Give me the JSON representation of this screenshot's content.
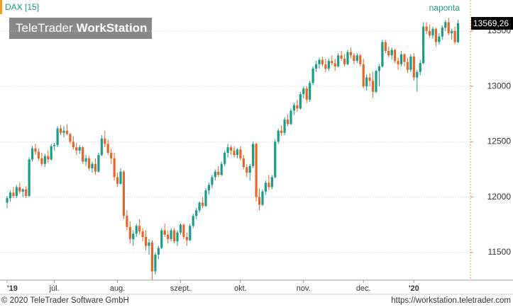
{
  "chart_data": {
    "type": "candlestick",
    "title": "DAX [15]",
    "interval": "naponta",
    "brand": {
      "light": "TeleTrader",
      "bold": "WorkStation"
    },
    "footer_left": "© 2020 TeleTrader Software GmbH",
    "footer_right": "https://workstation.teletrader.com",
    "up_color": "#1a9c86",
    "down_color": "#e5652a",
    "ylim": [
      11250,
      13780
    ],
    "yticks": [
      11500,
      12000,
      12500,
      13000,
      13500
    ],
    "xlim": [
      -2,
      146
    ],
    "xticks": [
      {
        "value": 0,
        "label": "'19"
      },
      {
        "value": 15,
        "label": "júl."
      },
      {
        "value": 35,
        "label": "aug."
      },
      {
        "value": 55,
        "label": "szept."
      },
      {
        "value": 74,
        "label": "okt."
      },
      {
        "value": 94,
        "label": "nov."
      },
      {
        "value": 113,
        "label": "dec."
      },
      {
        "value": 129,
        "label": "'20"
      }
    ],
    "grid": true,
    "last_value": {
      "value": 13569.26,
      "label": "13569,26"
    },
    "ohlc": [
      [
        11950,
        12010,
        11900,
        11990
      ],
      [
        11990,
        12060,
        11960,
        12040
      ],
      [
        12040,
        12090,
        11990,
        12010
      ],
      [
        12010,
        12110,
        11990,
        12090
      ],
      [
        12090,
        12130,
        12030,
        12050
      ],
      [
        12050,
        12080,
        12000,
        12070
      ],
      [
        12070,
        12100,
        11990,
        12010
      ],
      [
        12010,
        12360,
        12000,
        12340
      ],
      [
        12340,
        12460,
        12320,
        12440
      ],
      [
        12440,
        12480,
        12380,
        12410
      ],
      [
        12410,
        12440,
        12330,
        12350
      ],
      [
        12350,
        12400,
        12280,
        12300
      ],
      [
        12300,
        12390,
        12270,
        12370
      ],
      [
        12370,
        12420,
        12310,
        12340
      ],
      [
        12340,
        12480,
        12330,
        12460
      ],
      [
        12460,
        12490,
        12420,
        12470
      ],
      [
        12470,
        12640,
        12450,
        12620
      ],
      [
        12620,
        12650,
        12560,
        12580
      ],
      [
        12580,
        12640,
        12540,
        12600
      ],
      [
        12600,
        12660,
        12560,
        12570
      ],
      [
        12570,
        12580,
        12480,
        12500
      ],
      [
        12500,
        12550,
        12430,
        12450
      ],
      [
        12450,
        12490,
        12380,
        12420
      ],
      [
        12420,
        12470,
        12390,
        12450
      ],
      [
        12450,
        12460,
        12300,
        12320
      ],
      [
        12320,
        12380,
        12280,
        12350
      ],
      [
        12350,
        12370,
        12240,
        12260
      ],
      [
        12260,
        12320,
        12220,
        12300
      ],
      [
        12300,
        12350,
        12200,
        12230
      ],
      [
        12230,
        12400,
        12220,
        12380
      ],
      [
        12380,
        12560,
        12370,
        12530
      ],
      [
        12530,
        12600,
        12450,
        12480
      ],
      [
        12480,
        12520,
        12380,
        12400
      ],
      [
        12400,
        12440,
        12300,
        12350
      ],
      [
        12350,
        12400,
        12150,
        12180
      ],
      [
        12180,
        12220,
        12090,
        12120
      ],
      [
        12120,
        12260,
        12110,
        12230
      ],
      [
        12230,
        12240,
        11800,
        11830
      ],
      [
        11830,
        11880,
        11700,
        11730
      ],
      [
        11730,
        11780,
        11580,
        11620
      ],
      [
        11620,
        11700,
        11560,
        11670
      ],
      [
        11670,
        11760,
        11640,
        11740
      ],
      [
        11740,
        11800,
        11660,
        11690
      ],
      [
        11690,
        11720,
        11600,
        11640
      ],
      [
        11640,
        11700,
        11520,
        11560
      ],
      [
        11560,
        11620,
        11480,
        11590
      ],
      [
        11590,
        11610,
        11250,
        11330
      ],
      [
        11330,
        11500,
        11300,
        11480
      ],
      [
        11480,
        11560,
        11440,
        11540
      ],
      [
        11540,
        11720,
        11530,
        11700
      ],
      [
        11700,
        11760,
        11640,
        11660
      ],
      [
        11660,
        11700,
        11580,
        11620
      ],
      [
        11620,
        11720,
        11600,
        11700
      ],
      [
        11700,
        11720,
        11580,
        11600
      ],
      [
        11600,
        11700,
        11560,
        11680
      ],
      [
        11680,
        11760,
        11660,
        11750
      ],
      [
        11750,
        11760,
        11620,
        11640
      ],
      [
        11640,
        11680,
        11560,
        11610
      ],
      [
        11610,
        11760,
        11600,
        11740
      ],
      [
        11740,
        11850,
        11720,
        11830
      ],
      [
        11830,
        11900,
        11800,
        11880
      ],
      [
        11880,
        11960,
        11860,
        11950
      ],
      [
        11950,
        12000,
        11900,
        11920
      ],
      [
        11920,
        12080,
        11910,
        12060
      ],
      [
        12060,
        12130,
        12020,
        12110
      ],
      [
        12110,
        12200,
        12080,
        12180
      ],
      [
        12180,
        12250,
        12150,
        12230
      ],
      [
        12230,
        12280,
        12180,
        12200
      ],
      [
        12200,
        12320,
        12190,
        12300
      ],
      [
        12300,
        12420,
        12280,
        12400
      ],
      [
        12400,
        12480,
        12360,
        12450
      ],
      [
        12450,
        12470,
        12380,
        12420
      ],
      [
        12420,
        12460,
        12360,
        12380
      ],
      [
        12380,
        12440,
        12350,
        12430
      ],
      [
        12430,
        12460,
        12330,
        12350
      ],
      [
        12350,
        12380,
        12250,
        12270
      ],
      [
        12270,
        12300,
        12180,
        12220
      ],
      [
        12220,
        12300,
        12150,
        12280
      ],
      [
        12280,
        12500,
        12260,
        12480
      ],
      [
        12480,
        12490,
        11960,
        12000
      ],
      [
        12000,
        12080,
        11880,
        11930
      ],
      [
        11930,
        12070,
        11920,
        12050
      ],
      [
        12050,
        12150,
        12020,
        12130
      ],
      [
        12130,
        12200,
        12060,
        12090
      ],
      [
        12090,
        12200,
        12070,
        12180
      ],
      [
        12180,
        12520,
        12170,
        12500
      ],
      [
        12500,
        12620,
        12480,
        12600
      ],
      [
        12600,
        12650,
        12550,
        12580
      ],
      [
        12580,
        12720,
        12560,
        12700
      ],
      [
        12700,
        12750,
        12640,
        12660
      ],
      [
        12660,
        12800,
        12650,
        12780
      ],
      [
        12780,
        12850,
        12740,
        12830
      ],
      [
        12830,
        12880,
        12770,
        12800
      ],
      [
        12800,
        12950,
        12790,
        12930
      ],
      [
        12930,
        13000,
        12890,
        12980
      ],
      [
        12980,
        13000,
        12850,
        12880
      ],
      [
        12880,
        13050,
        12860,
        13030
      ],
      [
        13030,
        13180,
        13010,
        13160
      ],
      [
        13160,
        13230,
        13130,
        13200
      ],
      [
        13200,
        13260,
        13160,
        13240
      ],
      [
        13240,
        13270,
        13180,
        13200
      ],
      [
        13200,
        13250,
        13130,
        13160
      ],
      [
        13160,
        13250,
        13140,
        13230
      ],
      [
        13230,
        13280,
        13190,
        13210
      ],
      [
        13210,
        13250,
        13140,
        13180
      ],
      [
        13180,
        13300,
        13170,
        13280
      ],
      [
        13280,
        13320,
        13230,
        13250
      ],
      [
        13250,
        13290,
        13180,
        13200
      ],
      [
        13200,
        13330,
        13190,
        13310
      ],
      [
        13310,
        13350,
        13250,
        13280
      ],
      [
        13280,
        13300,
        13200,
        13230
      ],
      [
        13230,
        13300,
        13210,
        13280
      ],
      [
        13280,
        13290,
        13180,
        13200
      ],
      [
        13200,
        13250,
        12980,
        13000
      ],
      [
        13000,
        13110,
        12960,
        13080
      ],
      [
        13080,
        13120,
        13000,
        13050
      ],
      [
        13050,
        13130,
        12900,
        12950
      ],
      [
        12950,
        13150,
        12940,
        13140
      ],
      [
        13140,
        13200,
        13000,
        13180
      ],
      [
        13180,
        13420,
        13170,
        13400
      ],
      [
        13400,
        13420,
        13300,
        13320
      ],
      [
        13320,
        13360,
        13260,
        13280
      ],
      [
        13280,
        13350,
        13240,
        13330
      ],
      [
        13330,
        13340,
        13210,
        13230
      ],
      [
        13230,
        13260,
        13150,
        13200
      ],
      [
        13200,
        13320,
        13180,
        13290
      ],
      [
        13290,
        13300,
        13180,
        13220
      ],
      [
        13220,
        13260,
        13120,
        13150
      ],
      [
        13150,
        13290,
        13130,
        13270
      ],
      [
        13270,
        13300,
        13050,
        13080
      ],
      [
        13080,
        13150,
        12950,
        13130
      ],
      [
        13130,
        13240,
        13100,
        13210
      ],
      [
        13210,
        13580,
        13200,
        13540
      ],
      [
        13540,
        13580,
        13470,
        13500
      ],
      [
        13500,
        13560,
        13440,
        13460
      ],
      [
        13460,
        13540,
        13430,
        13520
      ],
      [
        13520,
        13530,
        13360,
        13400
      ],
      [
        13400,
        13480,
        13380,
        13450
      ],
      [
        13450,
        13550,
        13420,
        13530
      ],
      [
        13530,
        13600,
        13500,
        13580
      ],
      [
        13580,
        13620,
        13460,
        13480
      ],
      [
        13480,
        13520,
        13420,
        13500
      ],
      [
        13500,
        13540,
        13380,
        13400
      ],
      [
        13400,
        13600,
        13390,
        13569.26
      ]
    ]
  }
}
